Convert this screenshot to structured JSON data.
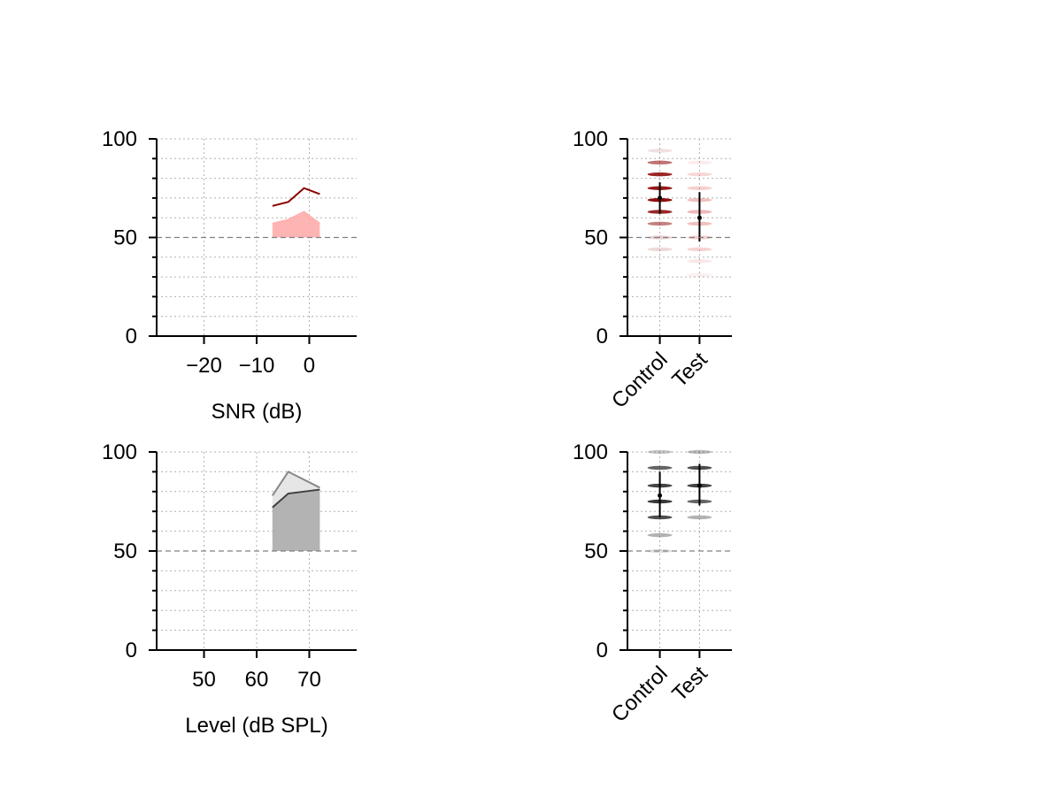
{
  "chart_data": [
    {
      "type": "line",
      "xlabel": "SNR (dB)",
      "xlim": [
        -29,
        9
      ],
      "ylim": [
        0,
        100
      ],
      "xticks": [
        -20,
        -10,
        0
      ],
      "xtick_labels": [
        "−20",
        "−10",
        "0"
      ],
      "yticks": [
        0,
        50,
        100
      ],
      "ytick_labels": [
        "0",
        "50",
        "100"
      ],
      "grid": true,
      "reference_line": 50,
      "x": [
        -7,
        -4,
        -1,
        2
      ],
      "series": [
        {
          "values": [
            66,
            68,
            75,
            72
          ],
          "color": "#8b0000",
          "style": "line"
        },
        {
          "values": [
            57,
            59,
            63,
            57
          ],
          "color": "#ffb0b0",
          "style": "area",
          "baseline": 50
        }
      ]
    },
    {
      "type": "scatter",
      "categories": [
        "Control",
        "Test"
      ],
      "ylim": [
        0,
        100
      ],
      "yticks": [
        0,
        50,
        100
      ],
      "ytick_labels": [
        "0",
        "50",
        "100"
      ],
      "grid": true,
      "reference_line": 50,
      "series": [
        {
          "category": "Control",
          "color": "#8b0000",
          "mean": 70,
          "error": [
            62,
            78
          ],
          "points": [
            {
              "y": 94,
              "a": 0.12
            },
            {
              "y": 88,
              "a": 0.55
            },
            {
              "y": 82,
              "a": 0.85
            },
            {
              "y": 75,
              "a": 0.9
            },
            {
              "y": 69,
              "a": 0.95
            },
            {
              "y": 63,
              "a": 0.85
            },
            {
              "y": 57,
              "a": 0.5
            },
            {
              "y": 50,
              "a": 0.18
            },
            {
              "y": 44,
              "a": 0.15
            }
          ]
        },
        {
          "category": "Test",
          "color": "#e06060",
          "mean": 60,
          "error": [
            48,
            73
          ],
          "points": [
            {
              "y": 88,
              "a": 0.12
            },
            {
              "y": 82,
              "a": 0.25
            },
            {
              "y": 75,
              "a": 0.3
            },
            {
              "y": 69,
              "a": 0.4
            },
            {
              "y": 63,
              "a": 0.45
            },
            {
              "y": 57,
              "a": 0.4
            },
            {
              "y": 50,
              "a": 0.3
            },
            {
              "y": 44,
              "a": 0.28
            },
            {
              "y": 38,
              "a": 0.15
            },
            {
              "y": 31,
              "a": 0.1
            }
          ]
        }
      ]
    },
    {
      "type": "line",
      "xlabel": "Level (dB SPL)",
      "xlim": [
        41,
        79
      ],
      "ylim": [
        0,
        100
      ],
      "xticks": [
        50,
        60,
        70
      ],
      "xtick_labels": [
        "50",
        "60",
        "70"
      ],
      "yticks": [
        0,
        50,
        100
      ],
      "ytick_labels": [
        "0",
        "50",
        "100"
      ],
      "grid": true,
      "reference_line": 50,
      "x": [
        63,
        66,
        72
      ],
      "series": [
        {
          "values": [
            78,
            90,
            82
          ],
          "color": "#888888",
          "style": "area",
          "fill": "#e6e6e6",
          "baseline": 50
        },
        {
          "values": [
            72,
            79,
            81
          ],
          "color": "#404040",
          "style": "area",
          "fill": "#b3b3b3",
          "baseline": 50
        }
      ]
    },
    {
      "type": "scatter",
      "categories": [
        "Control",
        "Test"
      ],
      "ylim": [
        0,
        100
      ],
      "yticks": [
        0,
        50,
        100
      ],
      "ytick_labels": [
        "0",
        "50",
        "100"
      ],
      "grid": true,
      "reference_line": 50,
      "series": [
        {
          "category": "Control",
          "color": "#222222",
          "mean": 78,
          "error": [
            67,
            90
          ],
          "points": [
            {
              "y": 100,
              "a": 0.25
            },
            {
              "y": 92,
              "a": 0.7
            },
            {
              "y": 83,
              "a": 0.85
            },
            {
              "y": 75,
              "a": 0.9
            },
            {
              "y": 67,
              "a": 0.8
            },
            {
              "y": 58,
              "a": 0.35
            },
            {
              "y": 50,
              "a": 0.15
            }
          ]
        },
        {
          "category": "Test",
          "color": "#222222",
          "mean": 83,
          "error": [
            73,
            94
          ],
          "points": [
            {
              "y": 100,
              "a": 0.3
            },
            {
              "y": 92,
              "a": 0.8
            },
            {
              "y": 83,
              "a": 0.85
            },
            {
              "y": 75,
              "a": 0.7
            },
            {
              "y": 67,
              "a": 0.35
            }
          ]
        }
      ]
    }
  ]
}
